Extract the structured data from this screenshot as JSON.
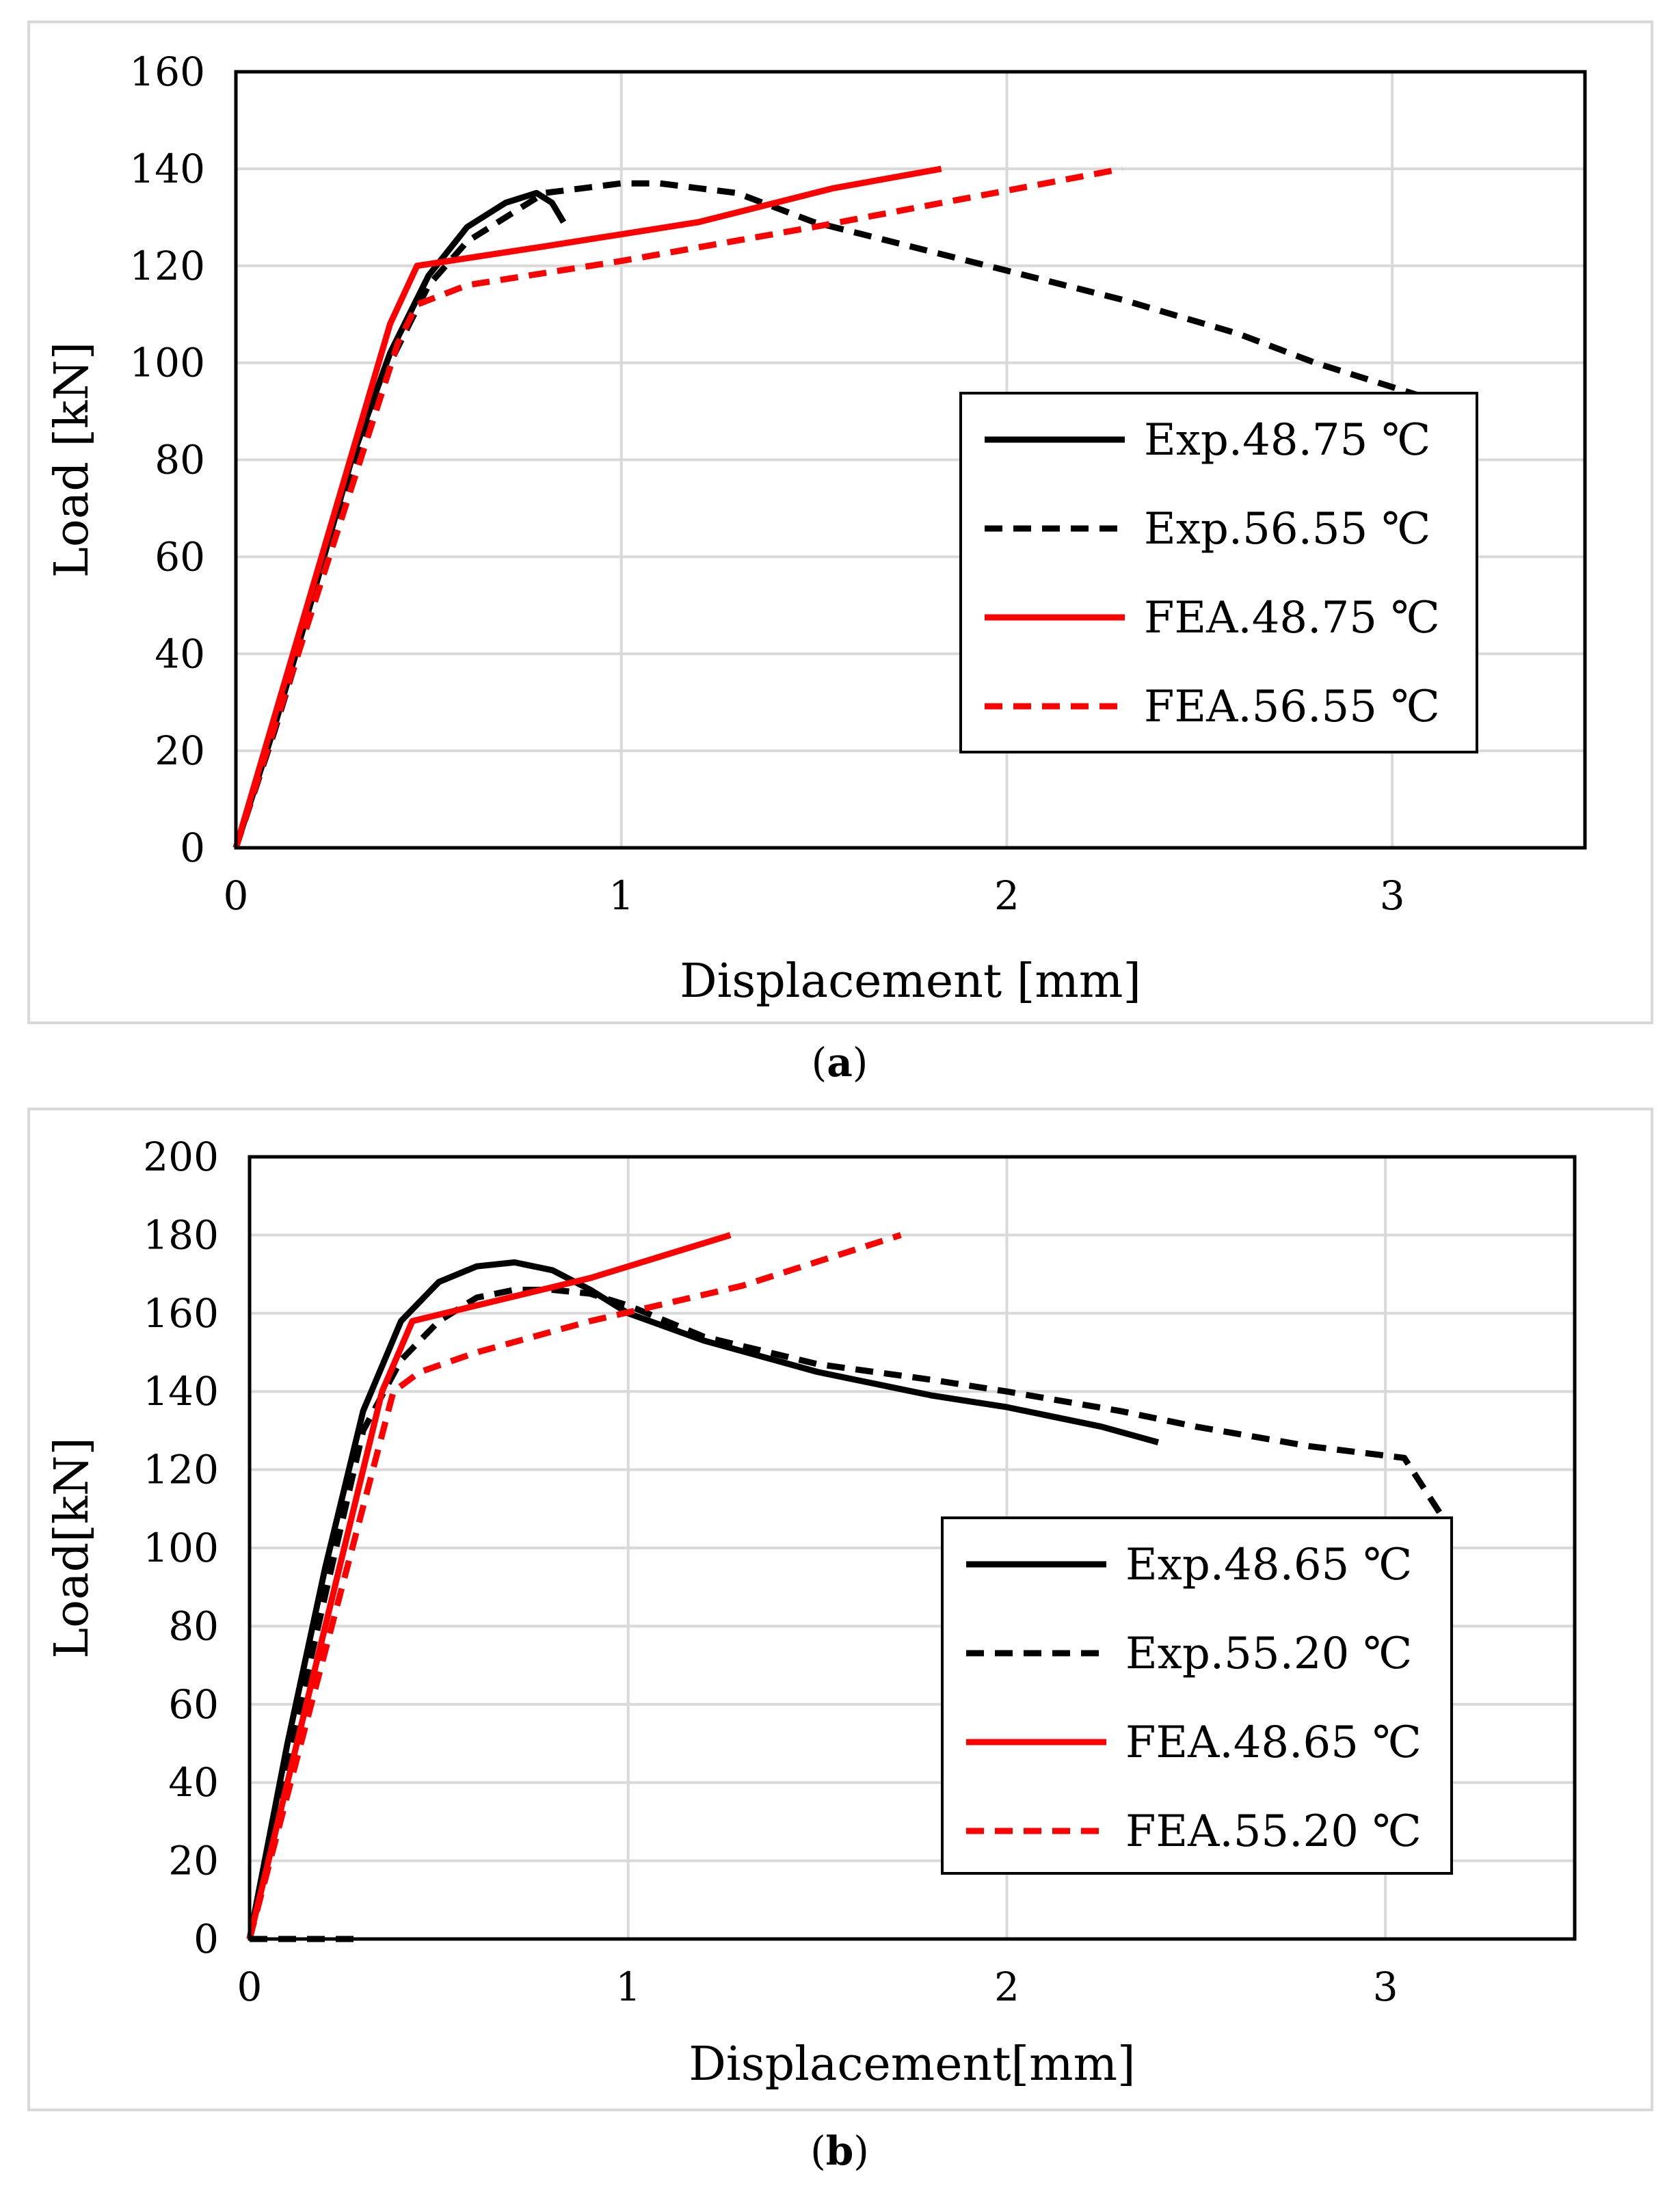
{
  "chart_data": [
    {
      "type": "line",
      "panel_label": "a",
      "xlabel": "Displacement [mm]",
      "ylabel": "Load [kN]",
      "xlim": [
        0,
        3.5
      ],
      "ylim": [
        0,
        160
      ],
      "xticks": [
        0,
        1,
        2,
        3
      ],
      "yticks": [
        0,
        20,
        40,
        60,
        80,
        100,
        120,
        140,
        160
      ],
      "grid": true,
      "legend_position": "right",
      "series": [
        {
          "name": "Exp.48.75 ℃",
          "color": "#000000",
          "dash": "solid",
          "points": [
            [
              0,
              0
            ],
            [
              0.1,
              25
            ],
            [
              0.2,
              52
            ],
            [
              0.3,
              80
            ],
            [
              0.4,
              102
            ],
            [
              0.5,
              118
            ],
            [
              0.6,
              128
            ],
            [
              0.7,
              133
            ],
            [
              0.78,
              135
            ],
            [
              0.82,
              133
            ],
            [
              0.85,
              129
            ]
          ]
        },
        {
          "name": "Exp.56.55 ℃",
          "color": "#000000",
          "dash": "dashed",
          "points": [
            [
              0,
              0
            ],
            [
              0.1,
              24
            ],
            [
              0.2,
              50
            ],
            [
              0.3,
              76
            ],
            [
              0.4,
              100
            ],
            [
              0.5,
              116
            ],
            [
              0.6,
              125
            ],
            [
              0.7,
              130
            ],
            [
              0.8,
              135
            ],
            [
              0.9,
              136
            ],
            [
              1.0,
              137
            ],
            [
              1.1,
              137
            ],
            [
              1.2,
              136
            ],
            [
              1.3,
              135
            ],
            [
              1.5,
              129
            ],
            [
              1.7,
              125
            ],
            [
              2.0,
              119
            ],
            [
              2.3,
              113
            ],
            [
              2.6,
              106
            ],
            [
              2.8,
              100
            ],
            [
              3.0,
              95
            ],
            [
              3.08,
              93
            ]
          ]
        },
        {
          "name": "FEA.48.75 ℃",
          "color": "#ff0000",
          "dash": "solid",
          "points": [
            [
              0,
              0
            ],
            [
              0.4,
              108
            ],
            [
              0.47,
              120
            ],
            [
              0.8,
              124
            ],
            [
              1.2,
              129
            ],
            [
              1.55,
              136
            ],
            [
              1.83,
              140
            ]
          ]
        },
        {
          "name": "FEA.56.55 ℃",
          "color": "#ff0000",
          "dash": "dashed",
          "points": [
            [
              0,
              0
            ],
            [
              0.42,
              104
            ],
            [
              0.47,
              112
            ],
            [
              0.6,
              116
            ],
            [
              1.0,
              121
            ],
            [
              1.5,
              128
            ],
            [
              1.9,
              134
            ],
            [
              2.3,
              140
            ]
          ]
        }
      ]
    },
    {
      "type": "line",
      "panel_label": "b",
      "xlabel": "Displacement[mm]",
      "ylabel": "Load[kN]",
      "xlim": [
        0,
        3.5
      ],
      "ylim": [
        0,
        200
      ],
      "xticks": [
        0,
        1,
        2,
        3
      ],
      "yticks": [
        0,
        20,
        40,
        60,
        80,
        100,
        120,
        140,
        160,
        180,
        200
      ],
      "grid": true,
      "legend_position": "right",
      "series": [
        {
          "name": "Exp.48.65 ℃",
          "color": "#000000",
          "dash": "solid",
          "points": [
            [
              0,
              0
            ],
            [
              0.1,
              50
            ],
            [
              0.2,
              95
            ],
            [
              0.3,
              135
            ],
            [
              0.4,
              158
            ],
            [
              0.5,
              168
            ],
            [
              0.6,
              172
            ],
            [
              0.7,
              173
            ],
            [
              0.8,
              171
            ],
            [
              0.9,
              166
            ],
            [
              1.0,
              160
            ],
            [
              1.2,
              153
            ],
            [
              1.5,
              145
            ],
            [
              1.8,
              139
            ],
            [
              2.0,
              136
            ],
            [
              2.25,
              131
            ],
            [
              2.4,
              127
            ]
          ]
        },
        {
          "name": "Exp.55.20 ℃",
          "color": "#000000",
          "dash": "dashed",
          "points": [
            [
              0,
              0
            ],
            [
              0.1,
              45
            ],
            [
              0.2,
              88
            ],
            [
              0.3,
              130
            ],
            [
              0.4,
              148
            ],
            [
              0.5,
              158
            ],
            [
              0.6,
              164
            ],
            [
              0.7,
              166
            ],
            [
              0.8,
              166
            ],
            [
              0.9,
              165
            ],
            [
              1.0,
              162
            ],
            [
              1.2,
              154
            ],
            [
              1.5,
              147
            ],
            [
              1.8,
              143
            ],
            [
              2.0,
              140
            ],
            [
              2.3,
              135
            ],
            [
              2.5,
              131
            ],
            [
              2.8,
              126
            ],
            [
              3.05,
              123
            ],
            [
              3.15,
              108
            ]
          ]
        },
        {
          "name": "FEA.48.65 ℃",
          "color": "#ff0000",
          "dash": "solid",
          "points": [
            [
              0,
              0
            ],
            [
              0.35,
              140
            ],
            [
              0.43,
              158
            ],
            [
              0.6,
              162
            ],
            [
              0.9,
              169
            ],
            [
              1.27,
              180
            ]
          ]
        },
        {
          "name": "FEA.55.20 ℃",
          "color": "#ff0000",
          "dash": "dashed",
          "points": [
            [
              0,
              0
            ],
            [
              0.38,
              140
            ],
            [
              0.45,
              145
            ],
            [
              0.6,
              150
            ],
            [
              0.9,
              158
            ],
            [
              1.3,
              167
            ],
            [
              1.72,
              180
            ]
          ]
        },
        {
          "name": "",
          "color": "#000000",
          "dash": "dashed",
          "points": [
            [
              0,
              0
            ],
            [
              0.28,
              0
            ]
          ]
        }
      ]
    }
  ]
}
